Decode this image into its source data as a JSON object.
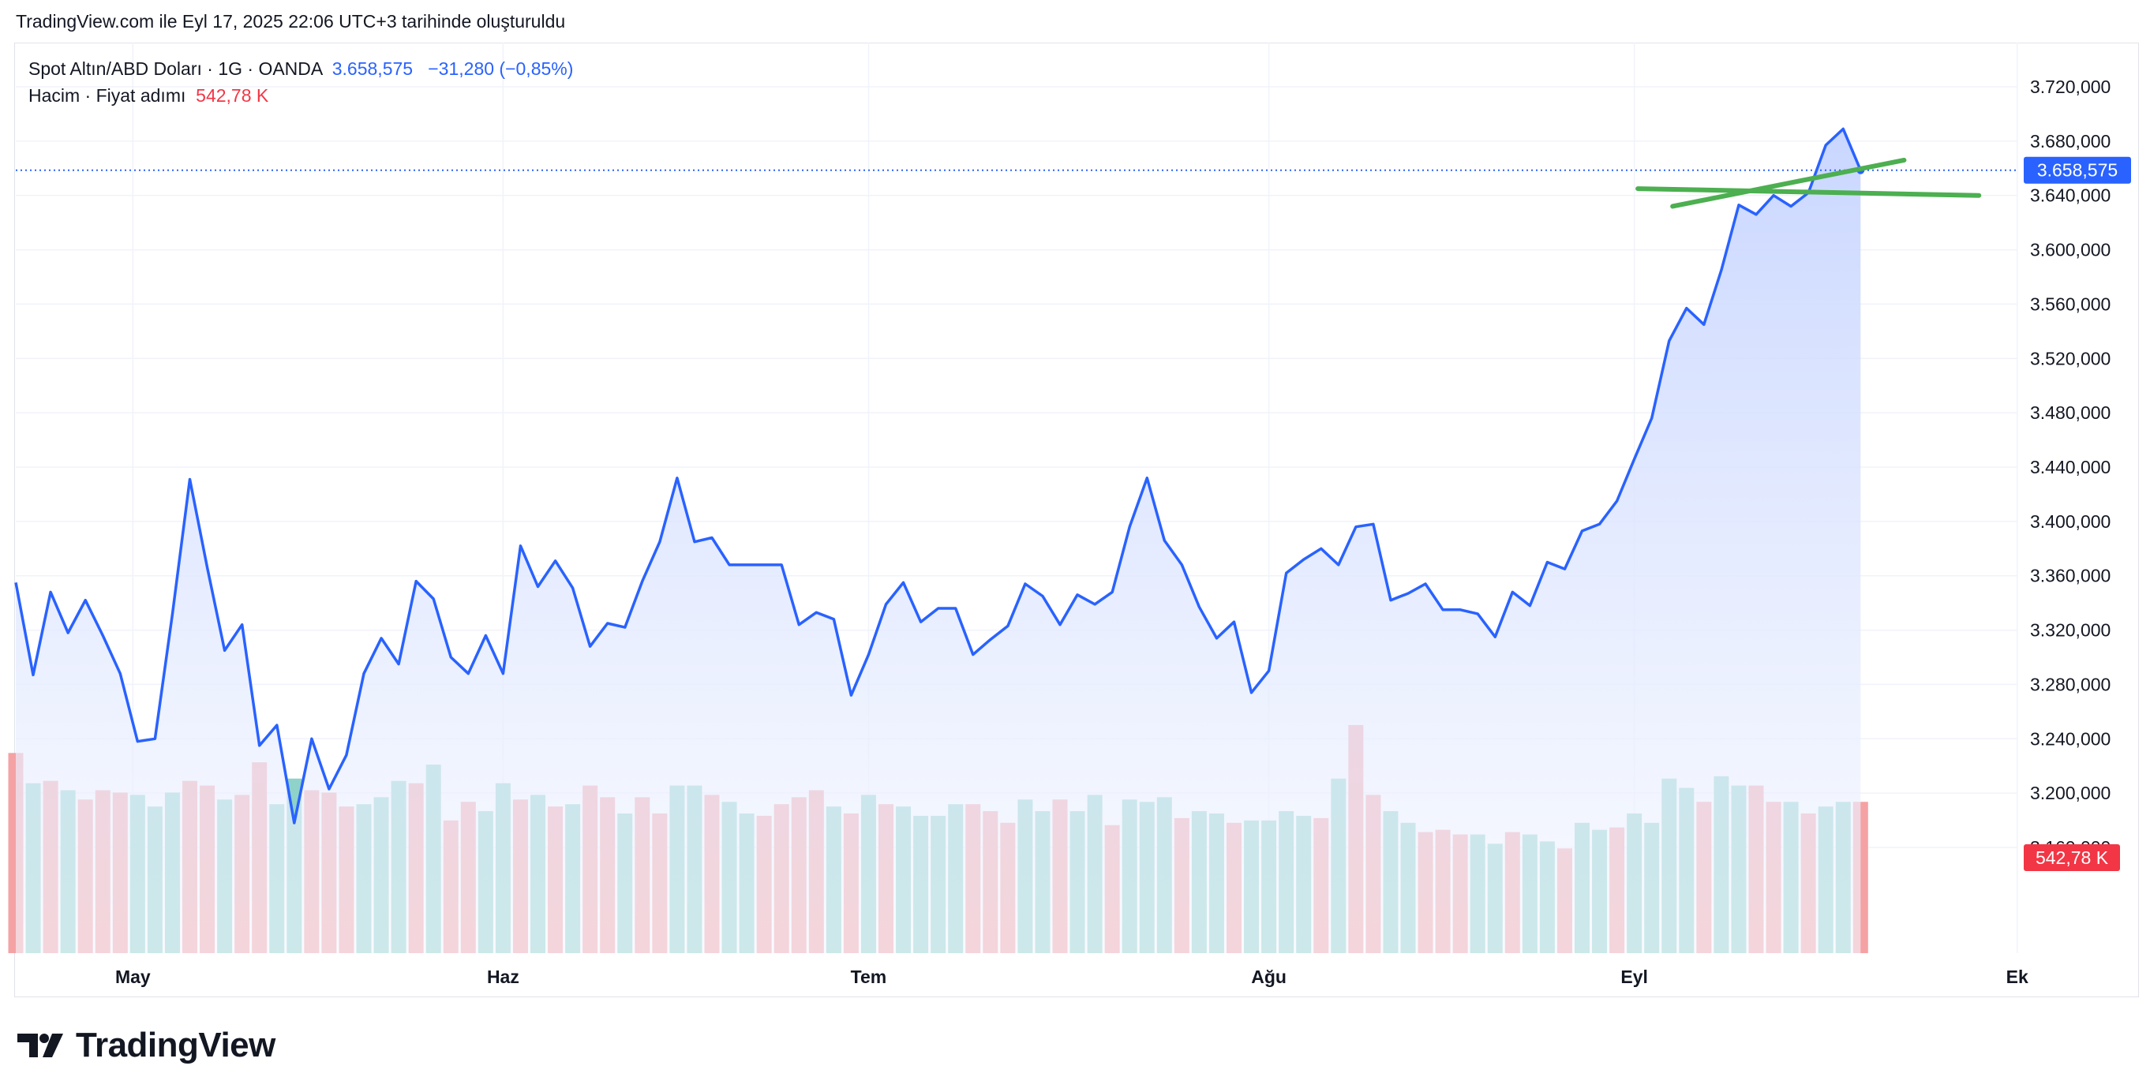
{
  "header": {
    "note": "TradingView.com ile Eyl 17, 2025 22:06 UTC+3 tarihinde oluşturuldu"
  },
  "legend": {
    "symbol_line": "Spot Altın/ABD Doları · 1G · OANDA",
    "last_price": "3.658,575",
    "change": "−31,280 (−0,85%)",
    "volume_label": "Hacim · Fiyat adımı",
    "volume_value": "542,78 K"
  },
  "colors": {
    "price_line": "#2962ff",
    "area_top": "#c6d4ff",
    "area_bottom": "#f4f7ff",
    "volume_up": "#8fd2c9",
    "volume_down": "#f5a2a5",
    "trendline": "#4caf50",
    "price_tag_bg": "#2962ff",
    "volume_tag_bg": "#f23645"
  },
  "brand": {
    "logo_icon": "tradingview-logo-icon",
    "name": "TradingView"
  },
  "chart_data": {
    "type": "area",
    "y_ticks": [
      "3.720,000",
      "3.680,000",
      "3.640,000",
      "3.600,000",
      "3.560,000",
      "3.520,000",
      "3.480,000",
      "3.440,000",
      "3.400,000",
      "3.360,000",
      "3.320,000",
      "3.280,000",
      "3.240,000",
      "3.200,000",
      "3.160,000"
    ],
    "ylim": [
      3140,
      3740
    ],
    "x_ticks": [
      {
        "label": "May",
        "index": 6.5
      },
      {
        "label": "Haz",
        "index": 28
      },
      {
        "label": "Tem",
        "index": 49
      },
      {
        "label": "Ağu",
        "index": 72
      },
      {
        "label": "Eyl",
        "index": 93
      },
      {
        "label": "Ek",
        "index": 115
      }
    ],
    "x_count": 116,
    "last_price_value": 3658.575,
    "last_price_label": "3.658,575",
    "volume_tag_label": "542,78 K",
    "grid": true,
    "close": [
      3355,
      3287,
      3348,
      3318,
      3342,
      3316,
      3288,
      3238,
      3240,
      3332,
      3431,
      3366,
      3305,
      3324,
      3235,
      3250,
      3178,
      3240,
      3203,
      3228,
      3288,
      3314,
      3295,
      3356,
      3343,
      3300,
      3288,
      3316,
      3288,
      3382,
      3352,
      3371,
      3351,
      3308,
      3325,
      3322,
      3356,
      3385,
      3432,
      3385,
      3388,
      3368,
      3368,
      3368,
      3368,
      3324,
      3333,
      3328,
      3272,
      3302,
      3339,
      3355,
      3326,
      3336,
      3336,
      3302,
      3313,
      3323,
      3354,
      3345,
      3324,
      3346,
      3339,
      3348,
      3396,
      3432,
      3386,
      3368,
      3337,
      3314,
      3326,
      3274,
      3290,
      3362,
      3372,
      3380,
      3368,
      3396,
      3398,
      3342,
      3347,
      3354,
      3335,
      3335,
      3332,
      3315,
      3348,
      3338,
      3370,
      3365,
      3393,
      3398,
      3415,
      3446,
      3476,
      3533,
      3557,
      3545,
      3585,
      3633,
      3626,
      3640,
      3632,
      3642,
      3677,
      3689,
      3658.575
    ],
    "volume": [
      0.86,
      0.73,
      0.74,
      0.7,
      0.66,
      0.7,
      0.69,
      0.68,
      0.63,
      0.69,
      0.74,
      0.72,
      0.66,
      0.68,
      0.82,
      0.64,
      0.75,
      0.7,
      0.69,
      0.63,
      0.64,
      0.67,
      0.74,
      0.73,
      0.81,
      0.57,
      0.65,
      0.61,
      0.73,
      0.66,
      0.68,
      0.63,
      0.64,
      0.72,
      0.67,
      0.6,
      0.67,
      0.6,
      0.72,
      0.72,
      0.68,
      0.65,
      0.6,
      0.59,
      0.64,
      0.67,
      0.7,
      0.63,
      0.6,
      0.68,
      0.64,
      0.63,
      0.59,
      0.59,
      0.64,
      0.64,
      0.61,
      0.56,
      0.66,
      0.61,
      0.66,
      0.61,
      0.68,
      0.55,
      0.66,
      0.65,
      0.67,
      0.58,
      0.61,
      0.6,
      0.56,
      0.57,
      0.57,
      0.61,
      0.59,
      0.58,
      0.75,
      0.98,
      0.68,
      0.61,
      0.56,
      0.52,
      0.53,
      0.51,
      0.51,
      0.47,
      0.52,
      0.51,
      0.48,
      0.45,
      0.56,
      0.53,
      0.54,
      0.6,
      0.56,
      0.75,
      0.71,
      0.65,
      0.76,
      0.72,
      0.72,
      0.65,
      0.65,
      0.6,
      0.63,
      0.65,
      0.65
    ],
    "volume_dir": [
      "d",
      "u",
      "d",
      "u",
      "d",
      "d",
      "d",
      "u",
      "u",
      "u",
      "d",
      "d",
      "u",
      "d",
      "d",
      "u",
      "u",
      "d",
      "d",
      "d",
      "u",
      "u",
      "u",
      "d",
      "u",
      "d",
      "d",
      "u",
      "u",
      "d",
      "u",
      "d",
      "u",
      "d",
      "d",
      "u",
      "d",
      "d",
      "u",
      "u",
      "d",
      "u",
      "u",
      "d",
      "d",
      "d",
      "d",
      "u",
      "d",
      "u",
      "d",
      "u",
      "u",
      "u",
      "u",
      "d",
      "d",
      "d",
      "u",
      "u",
      "d",
      "u",
      "u",
      "d",
      "u",
      "u",
      "u",
      "d",
      "u",
      "u",
      "d",
      "u",
      "u",
      "u",
      "u",
      "d",
      "u",
      "d",
      "d",
      "u",
      "u",
      "d",
      "d",
      "d",
      "u",
      "u",
      "d",
      "u",
      "u",
      "d",
      "u",
      "u",
      "d",
      "u",
      "u",
      "u",
      "u",
      "d",
      "u",
      "u",
      "d",
      "d",
      "u",
      "d",
      "u",
      "u",
      "d"
    ],
    "trendlines": [
      {
        "name": "trendline-flat",
        "points": [
          [
            93.2,
            3645
          ],
          [
            112.8,
            3640
          ]
        ]
      },
      {
        "name": "trendline-rising",
        "points": [
          [
            95.2,
            3632
          ],
          [
            108.5,
            3666
          ]
        ]
      }
    ]
  }
}
